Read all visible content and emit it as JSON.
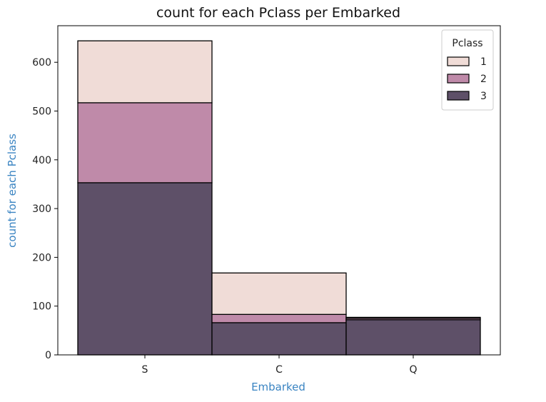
{
  "chart_data": {
    "type": "bar",
    "stacked": true,
    "title": "count for each Pclass per Embarked",
    "xlabel": "Embarked",
    "ylabel": "count for each Pclass",
    "categories": [
      "S",
      "C",
      "Q"
    ],
    "series": [
      {
        "name": "3",
        "values": [
          353,
          66,
          72
        ],
        "color": "#5e5068"
      },
      {
        "name": "2",
        "values": [
          164,
          17,
          3
        ],
        "color": "#bf8aa9"
      },
      {
        "name": "1",
        "values": [
          127,
          85,
          2
        ],
        "color": "#f0dcd7"
      }
    ],
    "ylim": [
      0,
      675
    ],
    "yticks": [
      0,
      100,
      200,
      300,
      400,
      500,
      600
    ],
    "legend": {
      "title": "Pclass",
      "entries": [
        "1",
        "2",
        "3"
      ],
      "placement": "top-right"
    },
    "label_color": "#3a84c2",
    "grid": false
  }
}
